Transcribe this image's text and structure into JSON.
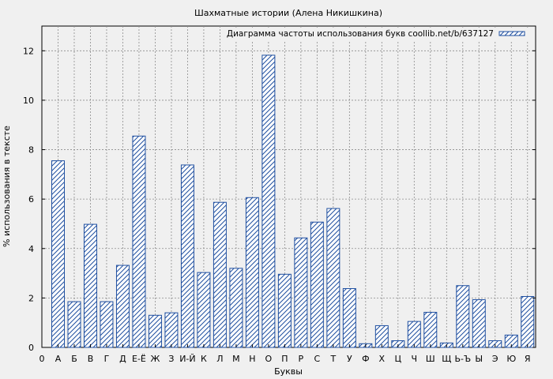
{
  "chart_data": {
    "type": "bar",
    "title": "Шахматные истории (Алена Никишкина)",
    "xlabel": "Буквы",
    "ylabel": "% использования в тексте",
    "legend": {
      "label": "Диаграмма частоты использования букв coollib.net/b/637127",
      "placement": "top-right"
    },
    "ylim": [
      0,
      13
    ],
    "yticks": [
      0,
      2,
      4,
      6,
      8,
      10,
      12
    ],
    "grid": true,
    "bar_color": "#1f4fa0",
    "x_start_label": "0",
    "categories": [
      "А",
      "Б",
      "В",
      "Г",
      "Д",
      "Е-Ё",
      "Ж",
      "З",
      "И-Й",
      "К",
      "Л",
      "М",
      "Н",
      "О",
      "П",
      "Р",
      "С",
      "Т",
      "У",
      "Ф",
      "Х",
      "Ц",
      "Ч",
      "Ш",
      "Щ",
      "Ь-Ъ",
      "Ы",
      "Э",
      "Ю",
      "Я"
    ],
    "values": [
      7.55,
      1.85,
      4.98,
      1.85,
      3.32,
      8.55,
      1.3,
      1.4,
      7.38,
      3.03,
      5.87,
      3.2,
      6.06,
      11.82,
      2.96,
      4.43,
      5.07,
      5.62,
      2.38,
      0.15,
      0.88,
      0.27,
      1.05,
      1.42,
      0.18,
      2.5,
      1.93,
      0.27,
      0.5,
      2.06
    ]
  }
}
